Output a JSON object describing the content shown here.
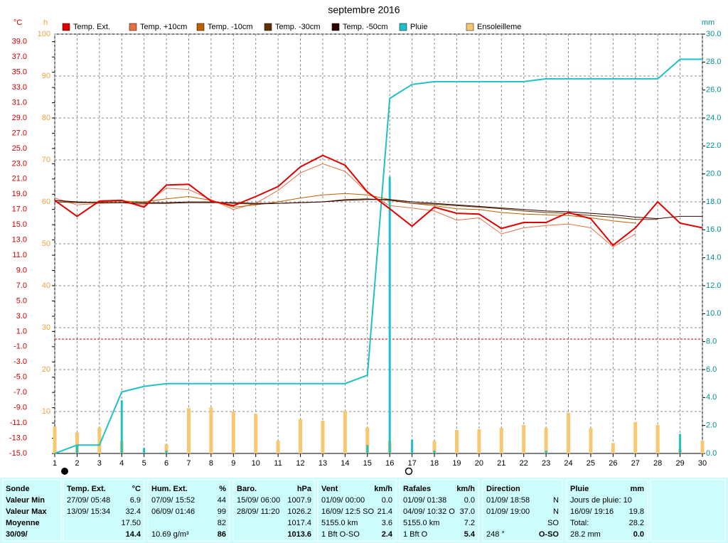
{
  "chart_data": {
    "type": "line",
    "title": "septembre 2016",
    "y_unit": "°C",
    "y3_unit": "h",
    "y2_unit": "mm",
    "x": [
      1,
      2,
      3,
      4,
      5,
      6,
      7,
      8,
      9,
      10,
      11,
      12,
      13,
      14,
      15,
      16,
      17,
      18,
      19,
      20,
      21,
      22,
      23,
      24,
      25,
      26,
      27,
      28,
      29,
      30
    ],
    "xlim": [
      1,
      30
    ],
    "xticks": [
      1,
      2,
      3,
      4,
      5,
      6,
      7,
      8,
      9,
      10,
      11,
      12,
      13,
      14,
      15,
      16,
      17,
      18,
      19,
      20,
      21,
      22,
      23,
      24,
      25,
      26,
      27,
      28,
      29,
      30
    ],
    "ylim": [
      -15,
      40
    ],
    "yticks": [
      {
        "value": -15,
        "label": "-15.0"
      },
      {
        "value": -13,
        "label": "-13.0"
      },
      {
        "value": -11,
        "label": "-11.0"
      },
      {
        "value": -9,
        "label": "-9.0"
      },
      {
        "value": -7,
        "label": "-7.0"
      },
      {
        "value": -5,
        "label": "-5.0"
      },
      {
        "value": -3,
        "label": "-3.0"
      },
      {
        "value": -1,
        "label": "-1.0"
      },
      {
        "value": 1,
        "label": "1.0"
      },
      {
        "value": 3,
        "label": "3.0"
      },
      {
        "value": 5,
        "label": "5.0"
      },
      {
        "value": 7,
        "label": "7.0"
      },
      {
        "value": 9,
        "label": "9.0"
      },
      {
        "value": 11,
        "label": "11.0"
      },
      {
        "value": 13,
        "label": "13.0"
      },
      {
        "value": 15,
        "label": "15.0"
      },
      {
        "value": 17,
        "label": "17.0"
      },
      {
        "value": 19,
        "label": "19.0"
      },
      {
        "value": 21,
        "label": "21.0"
      },
      {
        "value": 23,
        "label": "23.0"
      },
      {
        "value": 25,
        "label": "25.0"
      },
      {
        "value": 27,
        "label": "27.0"
      },
      {
        "value": 29,
        "label": "29.0"
      },
      {
        "value": 31,
        "label": "31.0"
      },
      {
        "value": 33,
        "label": "33.0"
      },
      {
        "value": 35,
        "label": "35.0"
      },
      {
        "value": 37,
        "label": "37.0"
      },
      {
        "value": 39,
        "label": "39.0"
      }
    ],
    "y2lim": [
      0,
      30
    ],
    "y2ticks": [
      {
        "value": 0,
        "label": "0.0"
      },
      {
        "value": 2,
        "label": "2.0"
      },
      {
        "value": 4,
        "label": "4.0"
      },
      {
        "value": 6,
        "label": "6.0"
      },
      {
        "value": 8,
        "label": "8.0"
      },
      {
        "value": 10,
        "label": "10.0"
      },
      {
        "value": 12,
        "label": "12.0"
      },
      {
        "value": 14,
        "label": "14.0"
      },
      {
        "value": 16,
        "label": "16.0"
      },
      {
        "value": 18,
        "label": "18.0"
      },
      {
        "value": 20,
        "label": "20.0"
      },
      {
        "value": 22,
        "label": "22.0"
      },
      {
        "value": 24,
        "label": "24.0"
      },
      {
        "value": 26,
        "label": "26.0"
      },
      {
        "value": 28,
        "label": "28.0"
      },
      {
        "value": 30,
        "label": "30.0"
      }
    ],
    "y3lim": [
      0,
      100
    ],
    "y3ticks": [
      10,
      20,
      30,
      40,
      50,
      60,
      70,
      80,
      90,
      100
    ],
    "grid": true,
    "zero_line_color": "#d00000",
    "series": [
      {
        "name": "Ensoleilleme",
        "type": "bar",
        "axis": "y3",
        "color": "#f8c870",
        "values": [
          6.4,
          5,
          6.2,
          3,
          0,
          2.2,
          10.8,
          11,
          10,
          9.4,
          3,
          8.2,
          7.8,
          10.2,
          6.2,
          3,
          0,
          3,
          5.6,
          5.8,
          6.1,
          6.8,
          6.1,
          9.7,
          6,
          2.5,
          7.5,
          6.8,
          1,
          3
        ]
      },
      {
        "type": "bar",
        "axis": "y2",
        "color": "#20c0c8",
        "values": [
          0,
          0.6,
          0,
          3.8,
          0.4,
          0.2,
          0,
          0,
          0,
          0,
          0,
          0,
          0,
          0,
          0.6,
          19.8,
          1,
          0.2,
          0,
          0,
          0,
          0,
          0.2,
          0,
          0,
          0,
          0,
          0,
          1.4,
          0
        ]
      },
      {
        "name": "Pluie",
        "type": "line",
        "axis": "y2",
        "color": "#20c0c8",
        "width": 2,
        "values": [
          0,
          0.6,
          0.6,
          4.4,
          4.8,
          5,
          5,
          5,
          5,
          5,
          5,
          5,
          5,
          5,
          5.6,
          25.4,
          26.4,
          26.6,
          26.6,
          26.6,
          26.6,
          26.6,
          26.8,
          26.8,
          26.8,
          26.8,
          26.8,
          26.8,
          28.2,
          28.2
        ]
      },
      {
        "name": "Temp. +10cm",
        "type": "line",
        "color": "#e87040",
        "width": 1,
        "values": [
          18.5,
          17.6,
          17.8,
          17.9,
          17.6,
          19.8,
          19.6,
          18.3,
          17,
          17.8,
          19.5,
          21.8,
          23,
          22,
          19.2,
          17.5,
          17.2,
          16.8,
          15.6,
          15.9,
          13.8,
          14.6,
          14.9,
          15.1,
          14.6,
          12.1,
          13.8,
          null,
          null,
          null
        ]
      },
      {
        "name": "Temp. -10cm",
        "type": "line",
        "color": "#c06000",
        "width": 1,
        "values": [
          18.2,
          17.9,
          18,
          18.1,
          18,
          18.4,
          18.7,
          18.2,
          17.3,
          17.6,
          18,
          18.5,
          18.9,
          19.1,
          18.9,
          18.3,
          17.8,
          17.5,
          17.1,
          17,
          16.6,
          16.4,
          16.3,
          16.2,
          15.9,
          15.5,
          15.2,
          null,
          null,
          null
        ]
      },
      {
        "name": "Temp. -30cm",
        "type": "line",
        "color": "#603000",
        "width": 1,
        "values": [
          18,
          17.9,
          17.9,
          17.9,
          17.9,
          17.9,
          18,
          18,
          17.8,
          17.7,
          17.8,
          17.9,
          18,
          18.3,
          18.4,
          18.2,
          17.8,
          17.7,
          17.5,
          17.3,
          17.1,
          16.8,
          16.6,
          16.5,
          16.2,
          16,
          15.7,
          15.7,
          null,
          null
        ]
      },
      {
        "name": "Temp. -50cm",
        "type": "line",
        "color": "#300000",
        "width": 1,
        "values": [
          18.2,
          18,
          17.9,
          17.9,
          17.8,
          17.8,
          17.9,
          17.9,
          17.9,
          17.8,
          17.8,
          17.9,
          18,
          18.2,
          18.3,
          18.3,
          18,
          17.8,
          17.6,
          17.4,
          17.2,
          17,
          16.8,
          16.7,
          16.5,
          16.3,
          16,
          15.8,
          16.1,
          16.1
        ]
      },
      {
        "name": "Temp. Ext.",
        "type": "line",
        "color": "#e00000",
        "width": 2,
        "values": [
          18.2,
          16.1,
          18.1,
          18.2,
          17.3,
          20.2,
          20.3,
          18.1,
          17.5,
          18.7,
          20,
          22.6,
          24.1,
          22.8,
          19.3,
          17.1,
          14.8,
          17.3,
          16.5,
          16.4,
          14.5,
          15.3,
          15.3,
          16.6,
          15.8,
          12.3,
          14.6,
          18,
          15.2,
          14.6
        ]
      }
    ],
    "legend_order": [
      7,
      3,
      4,
      5,
      6,
      2,
      0
    ]
  },
  "stats": {
    "label_column": [
      "Sonde",
      "Valeur Min",
      "Valeur Max",
      "Moyenne",
      "30/09/"
    ],
    "columns": [
      {
        "title": "Temp. Ext.",
        "unit": "°C",
        "rows": [
          [
            "27/09/ 05:48",
            "6.9"
          ],
          [
            "13/09/ 15:34",
            "32.4"
          ],
          [
            "17.50"
          ],
          [
            "14.4"
          ]
        ]
      },
      {
        "title": "Hum. Ext.",
        "unit": "%",
        "rows": [
          [
            "07/09/ 15:52",
            "44"
          ],
          [
            "06/09/ 01:46",
            "99"
          ],
          [
            "82"
          ],
          [
            "10.69 g/m³",
            "86"
          ]
        ]
      },
      {
        "title": "Baro.",
        "unit": "hPa",
        "rows": [
          [
            "15/09/ 06:00",
            "1007.9"
          ],
          [
            "28/09/ 11:20",
            "1026.2"
          ],
          [
            "1017.4"
          ],
          [
            "1013.6"
          ]
        ]
      },
      {
        "title": "Vent",
        "unit": "km/h",
        "rows": [
          [
            "01/09/ 00:00",
            "0.0"
          ],
          [
            "16/09/ 12:5 SO",
            "21.4"
          ],
          [
            "5155.0 km",
            "3.6"
          ],
          [
            "1 Bft O-SO",
            "2.4"
          ]
        ]
      },
      {
        "title": "Rafales",
        "unit": "km/h",
        "rows": [
          [
            "01/09/ 01:38",
            "0.0"
          ],
          [
            "04/09/ 10:32 O",
            "37.0"
          ],
          [
            "5155.0 km",
            "7.2"
          ],
          [
            "1 Bft O",
            "5.4"
          ]
        ]
      },
      {
        "title": "Direction",
        "rows": [
          [
            "01/09/ 18:58",
            "N"
          ],
          [
            "01/09/ 19:00",
            "N"
          ],
          [
            "SO"
          ],
          [
            "248 °",
            "O-SO"
          ]
        ]
      },
      {
        "title": "Pluie",
        "unit": "mm",
        "rows": [
          [
            "Jours de pluie: 10"
          ],
          [
            "16/09/ 19:16",
            "19.8"
          ],
          [
            "Total:",
            "28.2"
          ],
          [
            "28.2 mm",
            "0.0"
          ]
        ]
      }
    ]
  }
}
